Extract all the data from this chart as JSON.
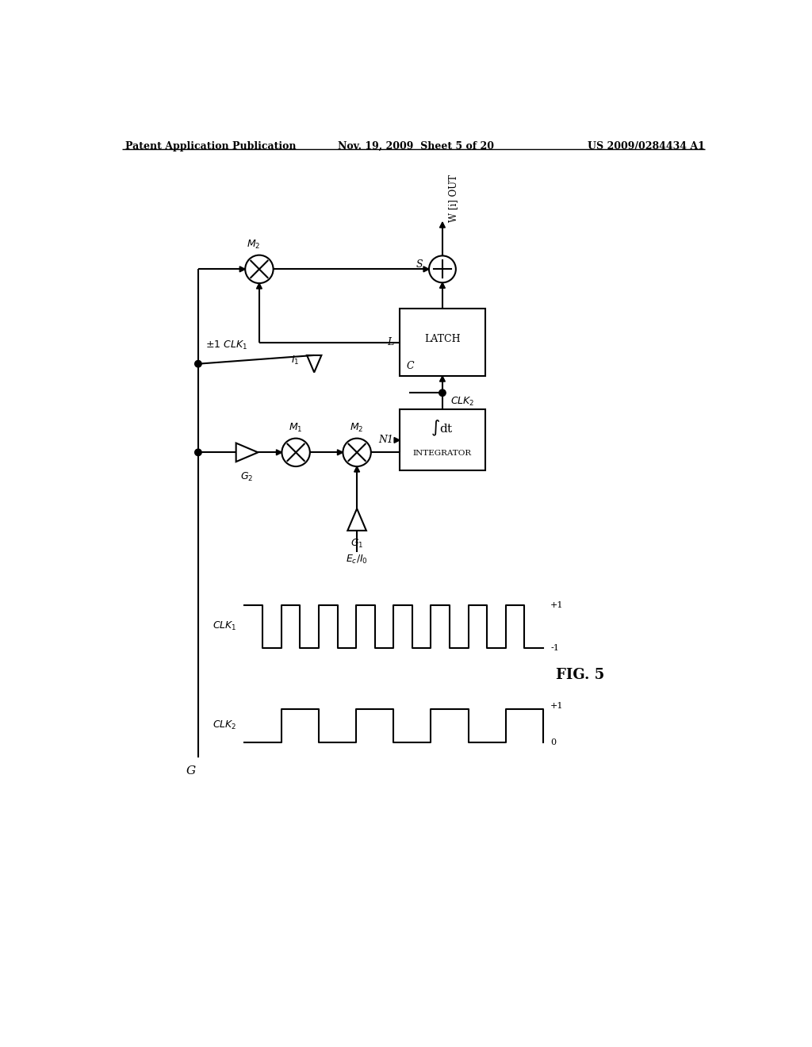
{
  "bg_color": "#ffffff",
  "line_color": "#000000",
  "header_left": "Patent Application Publication",
  "header_center": "Nov. 19, 2009  Sheet 5 of 20",
  "header_right": "US 2009/0284434 A1",
  "fig_label": "FIG. 5"
}
